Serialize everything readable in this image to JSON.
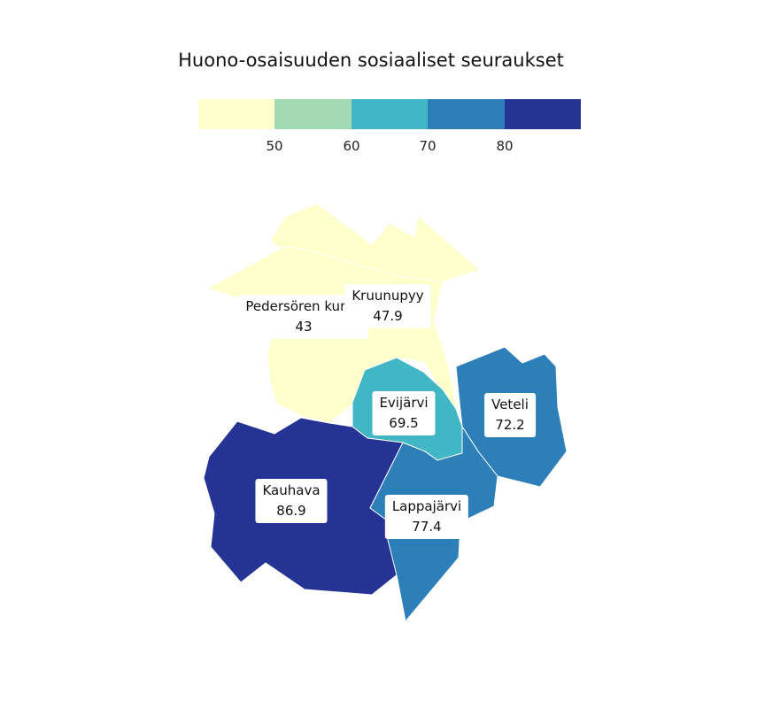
{
  "title": "Huono-osaisuuden sosiaaliset seuraukset",
  "legend": {
    "colors": [
      "#ffffcc",
      "#a1dab4",
      "#41b6c4",
      "#2c7fb8",
      "#253494"
    ],
    "ticks": [
      "50",
      "60",
      "70",
      "80"
    ]
  },
  "regions": [
    {
      "name": "Pedersören kunta",
      "value": "43",
      "color": "#ffffcc"
    },
    {
      "name": "Kruunupyy",
      "value": "47.9",
      "color": "#ffffcc"
    },
    {
      "name": "Evijärvi",
      "value": "69.5",
      "color": "#41b6c4"
    },
    {
      "name": "Veteli",
      "value": "72.2",
      "color": "#2c7fb8"
    },
    {
      "name": "Kauhava",
      "value": "86.9",
      "color": "#253494"
    },
    {
      "name": "Lappajärvi",
      "value": "77.4",
      "color": "#2c7fb8"
    }
  ]
}
